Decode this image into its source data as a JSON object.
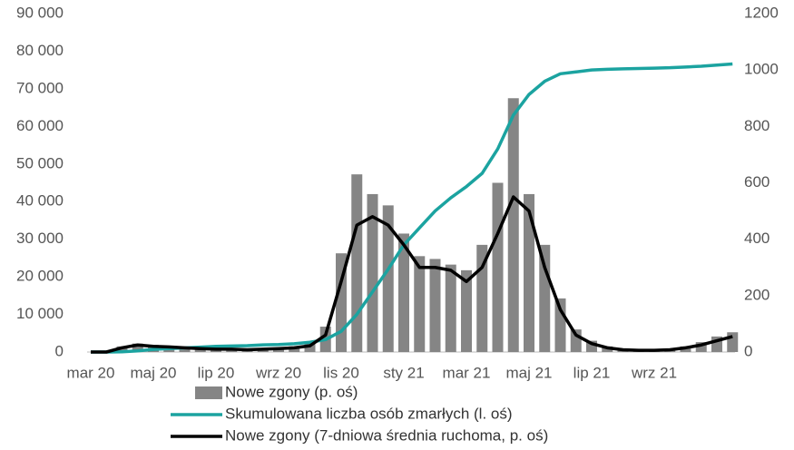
{
  "chart_data": {
    "type": "combo",
    "categories": [
      "mar 20",
      null,
      null,
      null,
      "maj 20",
      null,
      null,
      null,
      "lip 20",
      null,
      null,
      null,
      "wrz 20",
      null,
      null,
      null,
      "lis 20",
      null,
      null,
      null,
      "sty 21",
      null,
      null,
      null,
      "mar 21",
      null,
      null,
      null,
      "maj 21",
      null,
      null,
      null,
      "lip 21",
      null,
      null,
      null,
      "wrz 21",
      null,
      null,
      null,
      null,
      null
    ],
    "series": [
      {
        "name": "Nowe zgony (p. oś)",
        "type": "bar",
        "axis": "y2",
        "color": "#858585",
        "values": [
          0,
          0,
          20,
          30,
          25,
          20,
          18,
          15,
          12,
          12,
          10,
          12,
          15,
          20,
          30,
          90,
          350,
          630,
          560,
          520,
          420,
          340,
          330,
          310,
          290,
          380,
          600,
          900,
          560,
          380,
          190,
          80,
          40,
          20,
          12,
          8,
          8,
          12,
          20,
          35,
          55,
          70
        ]
      },
      {
        "name": "Skumulowana liczba osób zmarłych (l. oś)",
        "type": "line",
        "color": "#1ba3a0",
        "values": [
          0,
          0,
          50,
          300,
          700,
          900,
          1100,
          1300,
          1500,
          1600,
          1700,
          1900,
          2000,
          2200,
          2600,
          3300,
          5500,
          10000,
          16000,
          22000,
          28500,
          33000,
          37500,
          41000,
          44000,
          47500,
          54000,
          63000,
          68500,
          72000,
          74000,
          74500,
          75000,
          75200,
          75300,
          75400,
          75500,
          75600,
          75800,
          76000,
          76300,
          76600
        ]
      },
      {
        "name": "Nowe zgony (7-dniowa średnia ruchoma, p. oś)",
        "type": "line",
        "axis": "y2",
        "color": "#000000",
        "values": [
          0,
          0,
          15,
          25,
          20,
          18,
          15,
          12,
          10,
          10,
          8,
          10,
          12,
          15,
          22,
          60,
          250,
          450,
          480,
          450,
          380,
          300,
          300,
          290,
          250,
          300,
          420,
          550,
          500,
          300,
          150,
          60,
          30,
          15,
          8,
          6,
          6,
          8,
          15,
          25,
          40,
          55
        ]
      }
    ],
    "ylim": [
      0,
      90000
    ],
    "yticks": [
      0,
      {
        "value": 10000,
        "label": "10 000"
      },
      {
        "value": 20000,
        "label": "20 000"
      },
      {
        "value": 30000,
        "label": "30 000"
      },
      {
        "value": 40000,
        "label": "40 000"
      },
      {
        "value": 50000,
        "label": "50 000"
      },
      {
        "value": 60000,
        "label": "60 000"
      },
      {
        "value": 70000,
        "label": "70 000"
      },
      {
        "value": 80000,
        "label": "80 000"
      },
      {
        "value": 90000,
        "label": "90 000"
      }
    ],
    "y2lim": [
      0,
      1200
    ],
    "y2ticks": [
      0,
      200,
      400,
      600,
      800,
      1000,
      1200
    ],
    "grid": false
  }
}
